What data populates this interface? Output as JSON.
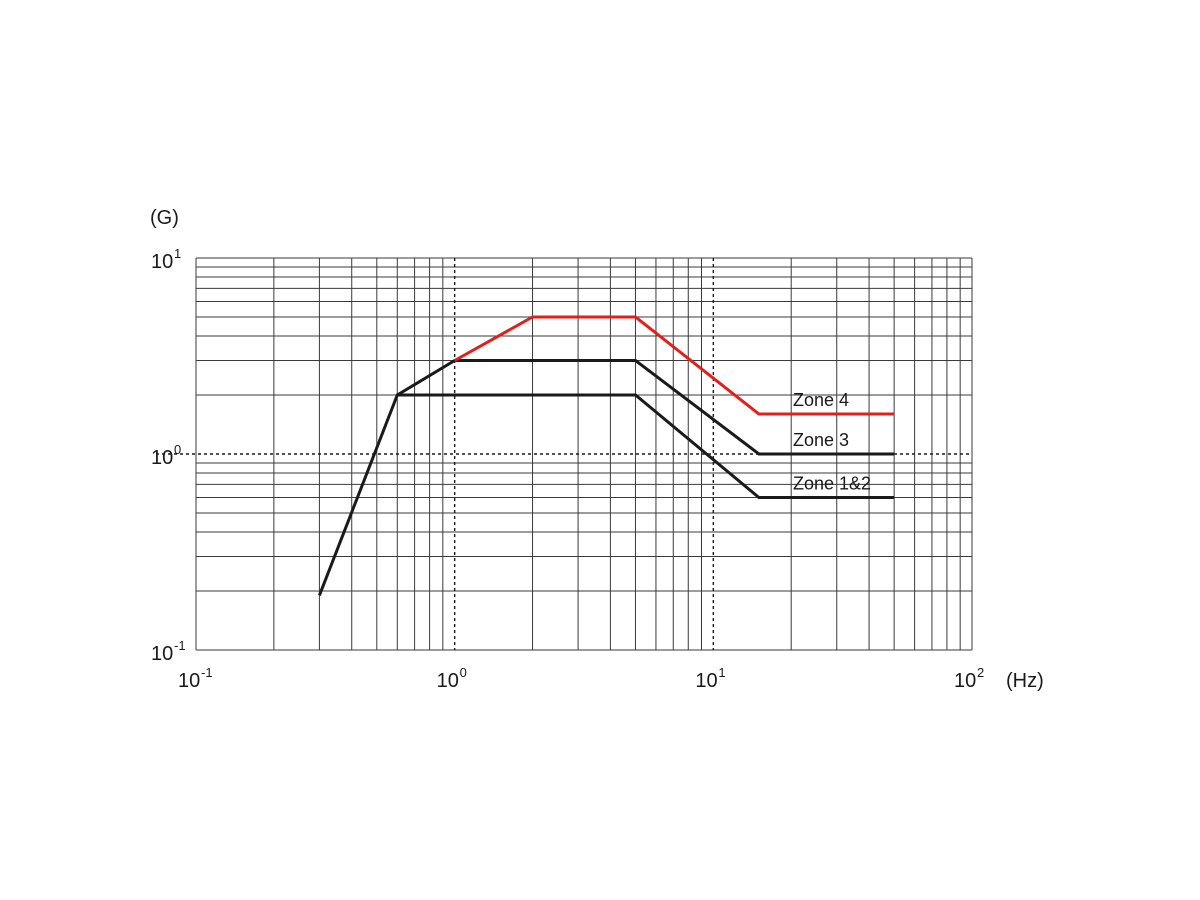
{
  "chart_data": {
    "type": "line",
    "x_scale": "log",
    "y_scale": "log",
    "xlim": [
      0.1,
      100
    ],
    "ylim": [
      0.1,
      10
    ],
    "grid": true,
    "xlabel": "(Hz)",
    "ylabel": "(G)",
    "x_ticks": [
      {
        "base": "10",
        "exp": "-1",
        "value": 0.1
      },
      {
        "base": "10",
        "exp": "0",
        "value": 1
      },
      {
        "base": "10",
        "exp": "1",
        "value": 10
      },
      {
        "base": "10",
        "exp": "2",
        "value": 100
      }
    ],
    "y_ticks": [
      {
        "base": "10",
        "exp": "1",
        "value": 10
      },
      {
        "base": "10",
        "exp": "0",
        "value": 1
      },
      {
        "base": "10",
        "exp": "-1",
        "value": 0.1
      }
    ],
    "reference_lines": {
      "x": [
        1,
        10
      ],
      "y": [
        1
      ]
    },
    "series": [
      {
        "name": "Zone 4",
        "color": "#e0201c",
        "points": [
          [
            1.0,
            3.0
          ],
          [
            2.0,
            5.0
          ],
          [
            5.0,
            5.0
          ],
          [
            15.0,
            1.6
          ],
          [
            50.0,
            1.6
          ]
        ]
      },
      {
        "name": "Zone 3",
        "color": "#1a1a1a",
        "points": [
          [
            0.6,
            2.0
          ],
          [
            1.0,
            3.0
          ],
          [
            5.0,
            3.0
          ],
          [
            15.0,
            1.0
          ],
          [
            50.0,
            1.0
          ]
        ]
      },
      {
        "name": "Zone 1&2",
        "color": "#1a1a1a",
        "points": [
          [
            0.3,
            0.19
          ],
          [
            0.6,
            2.0
          ],
          [
            5.0,
            2.0
          ],
          [
            15.0,
            0.6
          ],
          [
            50.0,
            0.6
          ]
        ]
      }
    ]
  }
}
